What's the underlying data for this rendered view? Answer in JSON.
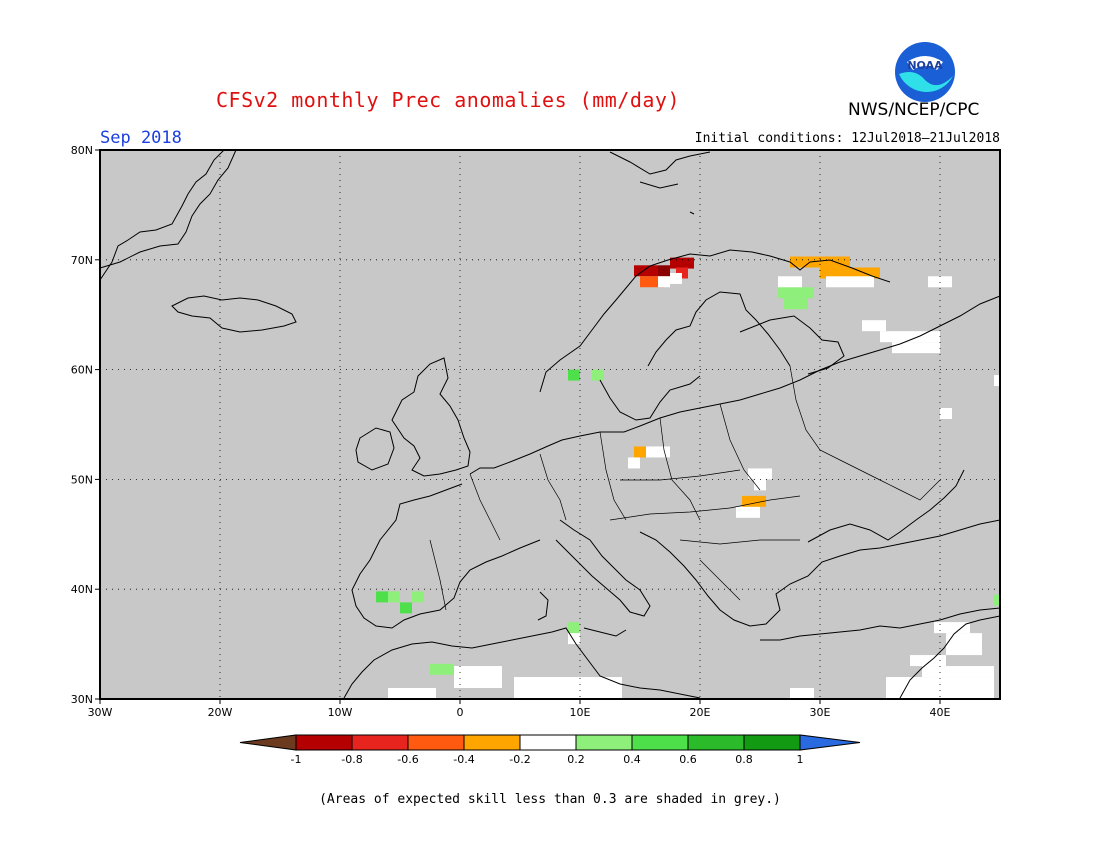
{
  "title": "CFSv2 monthly Prec anomalies (mm/day)",
  "agency": "NWS/NCEP/CPC",
  "logo_text": "NOAA",
  "period": "Sep 2018",
  "initial_conditions": "Initial conditions: 12Jul2018–21Jul2018",
  "footnote": "(Areas of expected skill less than 0.3 are shaded in grey.)",
  "map": {
    "lon_range": [
      -30,
      45
    ],
    "lat_range": [
      30,
      80
    ],
    "lon_ticks": [
      {
        "value": -30,
        "label": "30W"
      },
      {
        "value": -20,
        "label": "20W"
      },
      {
        "value": -10,
        "label": "10W"
      },
      {
        "value": 0,
        "label": "0"
      },
      {
        "value": 10,
        "label": "10E"
      },
      {
        "value": 20,
        "label": "20E"
      },
      {
        "value": 30,
        "label": "30E"
      },
      {
        "value": 40,
        "label": "40E"
      }
    ],
    "lat_ticks": [
      {
        "value": 30,
        "label": "30N"
      },
      {
        "value": 40,
        "label": "40N"
      },
      {
        "value": 50,
        "label": "50N"
      },
      {
        "value": 60,
        "label": "60N"
      },
      {
        "value": 70,
        "label": "70N"
      },
      {
        "value": 80,
        "label": "80N"
      }
    ],
    "grid": "dotted",
    "background_color": "#c8c8c8"
  },
  "colorbar": {
    "labels": [
      "-1",
      "-0.8",
      "-0.6",
      "-0.4",
      "-0.2",
      "0.2",
      "0.4",
      "0.6",
      "0.8",
      "1"
    ],
    "low_color": "#6b3a1f",
    "colors": [
      "#b40000",
      "#e8241e",
      "#ff5a10",
      "#ffa500",
      "#ffffff",
      "#8ef07a",
      "#4ee04a",
      "#2aba2a",
      "#139a13"
    ],
    "high_color": "#2a6ae0"
  },
  "shaded_cells": [
    {
      "lon": 14.5,
      "lat": 68.5,
      "w": 2,
      "h": 1,
      "color": "#b40000"
    },
    {
      "lon": 16.5,
      "lat": 68.5,
      "w": 1,
      "h": 1,
      "color": "#8b0000"
    },
    {
      "lon": 15.0,
      "lat": 67.5,
      "w": 2,
      "h": 1,
      "color": "#ff5a10"
    },
    {
      "lon": 17.5,
      "lat": 69.2,
      "w": 2,
      "h": 1,
      "color": "#b40000"
    },
    {
      "lon": 18.0,
      "lat": 68.3,
      "w": 1,
      "h": 1,
      "color": "#e8241e"
    },
    {
      "lon": 16.5,
      "lat": 67.5,
      "w": 1,
      "h": 1,
      "color": "#ffffff"
    },
    {
      "lon": 17.5,
      "lat": 67.8,
      "w": 1,
      "h": 1,
      "color": "#ffffff"
    },
    {
      "lon": 27.5,
      "lat": 69.3,
      "w": 3,
      "h": 1,
      "color": "#ffa500"
    },
    {
      "lon": 30.5,
      "lat": 69.3,
      "w": 2,
      "h": 1,
      "color": "#ffa500"
    },
    {
      "lon": 30.0,
      "lat": 68.3,
      "w": 5,
      "h": 1,
      "color": "#ffa500"
    },
    {
      "lon": 30.5,
      "lat": 67.5,
      "w": 4,
      "h": 1,
      "color": "#ffffff"
    },
    {
      "lon": 26.5,
      "lat": 66.5,
      "w": 3,
      "h": 1,
      "color": "#8ef07a"
    },
    {
      "lon": 27.0,
      "lat": 65.5,
      "w": 2,
      "h": 1,
      "color": "#8ef07a"
    },
    {
      "lon": 26.5,
      "lat": 67.5,
      "w": 2,
      "h": 1,
      "color": "#ffffff"
    },
    {
      "lon": 33.5,
      "lat": 63.5,
      "w": 2,
      "h": 1,
      "color": "#ffffff"
    },
    {
      "lon": 35.0,
      "lat": 62.5,
      "w": 5,
      "h": 1,
      "color": "#ffffff"
    },
    {
      "lon": 36.0,
      "lat": 61.5,
      "w": 4,
      "h": 1,
      "color": "#ffffff"
    },
    {
      "lon": 39.0,
      "lat": 67.5,
      "w": 2,
      "h": 1,
      "color": "#ffffff"
    },
    {
      "lon": 40.0,
      "lat": 55.5,
      "w": 1,
      "h": 1,
      "color": "#ffffff"
    },
    {
      "lon": 44.5,
      "lat": 58.5,
      "w": 0.5,
      "h": 1,
      "color": "#ffffff"
    },
    {
      "lon": 9.0,
      "lat": 59.0,
      "w": 1,
      "h": 1,
      "color": "#4ee04a"
    },
    {
      "lon": 11.0,
      "lat": 59.0,
      "w": 1,
      "h": 1,
      "color": "#8ef07a"
    },
    {
      "lon": 14.5,
      "lat": 52.0,
      "w": 1,
      "h": 1,
      "color": "#ffa500"
    },
    {
      "lon": 15.5,
      "lat": 52.0,
      "w": 2,
      "h": 1,
      "color": "#ffffff"
    },
    {
      "lon": 14.0,
      "lat": 51.0,
      "w": 1,
      "h": 1,
      "color": "#ffffff"
    },
    {
      "lon": 24.0,
      "lat": 50.0,
      "w": 2,
      "h": 1,
      "color": "#ffffff"
    },
    {
      "lon": 24.5,
      "lat": 49.0,
      "w": 1,
      "h": 1,
      "color": "#ffffff"
    },
    {
      "lon": 23.5,
      "lat": 47.5,
      "w": 2,
      "h": 1,
      "color": "#ffa500"
    },
    {
      "lon": 23.0,
      "lat": 46.5,
      "w": 2,
      "h": 1,
      "color": "#ffffff"
    },
    {
      "lon": -7.0,
      "lat": 38.8,
      "w": 1,
      "h": 1,
      "color": "#4ee04a"
    },
    {
      "lon": -6.0,
      "lat": 38.8,
      "w": 1,
      "h": 1,
      "color": "#8ef07a"
    },
    {
      "lon": -5.0,
      "lat": 37.8,
      "w": 1,
      "h": 1,
      "color": "#4ee04a"
    },
    {
      "lon": -4.0,
      "lat": 38.8,
      "w": 1,
      "h": 1,
      "color": "#8ef07a"
    },
    {
      "lon": 9.0,
      "lat": 36.0,
      "w": 1,
      "h": 1,
      "color": "#8ef07a"
    },
    {
      "lon": 9.0,
      "lat": 35.0,
      "w": 1,
      "h": 1,
      "color": "#ffffff"
    },
    {
      "lon": -2.5,
      "lat": 32.2,
      "w": 2,
      "h": 1,
      "color": "#8ef07a"
    },
    {
      "lon": -0.5,
      "lat": 31.0,
      "w": 4,
      "h": 2,
      "color": "#ffffff"
    },
    {
      "lon": 4.5,
      "lat": 30.0,
      "w": 6,
      "h": 2,
      "color": "#ffffff"
    },
    {
      "lon": 10.5,
      "lat": 30.0,
      "w": 3,
      "h": 2,
      "color": "#ffffff"
    },
    {
      "lon": -6.0,
      "lat": 30.0,
      "w": 4,
      "h": 1,
      "color": "#ffffff"
    },
    {
      "lon": 27.5,
      "lat": 30.0,
      "w": 2,
      "h": 1,
      "color": "#ffffff"
    },
    {
      "lon": 37.5,
      "lat": 33.0,
      "w": 3,
      "h": 1,
      "color": "#ffffff"
    },
    {
      "lon": 38.5,
      "lat": 32.0,
      "w": 6,
      "h": 1,
      "color": "#ffffff"
    },
    {
      "lon": 35.5,
      "lat": 30.0,
      "w": 9,
      "h": 2,
      "color": "#ffffff"
    },
    {
      "lon": 40.5,
      "lat": 34.0,
      "w": 3,
      "h": 2,
      "color": "#ffffff"
    },
    {
      "lon": 39.5,
      "lat": 36.0,
      "w": 3,
      "h": 1,
      "color": "#ffffff"
    },
    {
      "lon": 44.5,
      "lat": 38.5,
      "w": 0.5,
      "h": 1,
      "color": "#8ef07a"
    }
  ]
}
